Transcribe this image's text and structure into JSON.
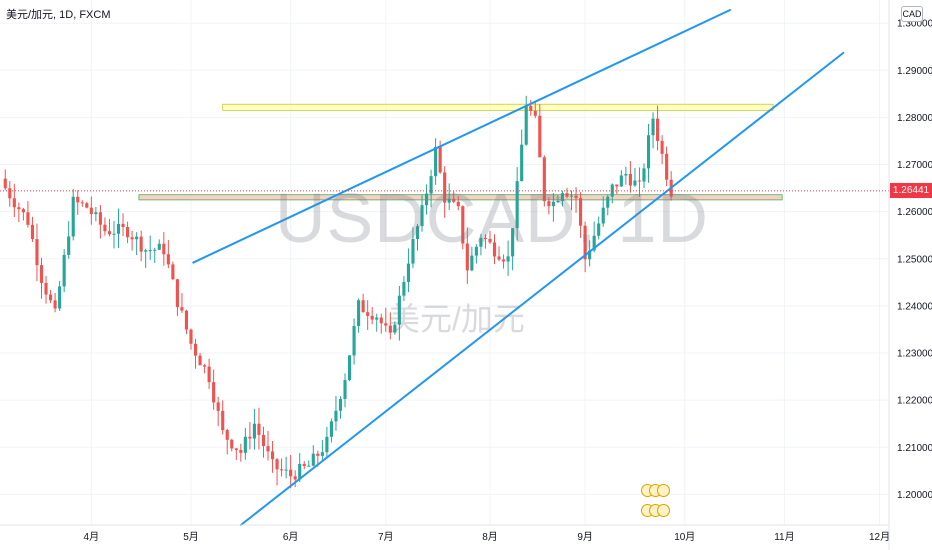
{
  "header": {
    "symbol_line": "美元/加元, 1D, FXCM",
    "currency": "CAD"
  },
  "watermark": {
    "ticker": "USDCAD, 1D",
    "description": "美元/加元"
  },
  "price_tag": "1.26441",
  "colors": {
    "up": "#26a69a",
    "down": "#ef5350",
    "trendline": "#2196f3",
    "resistance_zone": "#ffff99",
    "support_zone": "#f8b9b1",
    "price_tag": "#f23645"
  },
  "chart_data": {
    "type": "candlestick",
    "title": "",
    "xlabel": "",
    "ylabel": "",
    "ylim": [
      1.1935,
      1.3028
    ],
    "y_ticks": [
      "1.30000",
      "1.29000",
      "1.28000",
      "1.27000",
      "1.26000",
      "1.25000",
      "1.24000",
      "1.23000",
      "1.22000",
      "1.21000",
      "1.20000"
    ],
    "y_tick_values": [
      1.3,
      1.29,
      1.28,
      1.27,
      1.26,
      1.25,
      1.24,
      1.23,
      1.22,
      1.21,
      1.2
    ],
    "x_labels": [
      {
        "label": "4月",
        "bar": 19.5
      },
      {
        "label": "5月",
        "bar": 41.5
      },
      {
        "label": "6月",
        "bar": 63.5
      },
      {
        "label": "7月",
        "bar": 84.5
      },
      {
        "label": "8月",
        "bar": 107.5
      },
      {
        "label": "9月",
        "bar": 128.5
      },
      {
        "label": "10月",
        "bar": 150.5
      },
      {
        "label": "11月",
        "bar": 172.5
      },
      {
        "label": "12月",
        "bar": 193.5
      }
    ],
    "close_path": [
      [
        0,
        1.265
      ],
      [
        5,
        1.258
      ],
      [
        8,
        1.246
      ],
      [
        11,
        1.238
      ],
      [
        15,
        1.262
      ],
      [
        18,
        1.261
      ],
      [
        22,
        1.256
      ],
      [
        27,
        1.256
      ],
      [
        31,
        1.252
      ],
      [
        35,
        1.252
      ],
      [
        38,
        1.241
      ],
      [
        41,
        1.232
      ],
      [
        45,
        1.225
      ],
      [
        48,
        1.213
      ],
      [
        52,
        1.209
      ],
      [
        55,
        1.215
      ],
      [
        59,
        1.206
      ],
      [
        63,
        1.204
      ],
      [
        67,
        1.206
      ],
      [
        71,
        1.211
      ],
      [
        75,
        1.225
      ],
      [
        78,
        1.24
      ],
      [
        82,
        1.238
      ],
      [
        85,
        1.233
      ],
      [
        89,
        1.25
      ],
      [
        92,
        1.26
      ],
      [
        95,
        1.273
      ],
      [
        97,
        1.263
      ],
      [
        100,
        1.26
      ],
      [
        102,
        1.248
      ],
      [
        105,
        1.255
      ],
      [
        108,
        1.252
      ],
      [
        111,
        1.25
      ],
      [
        113,
        1.265
      ],
      [
        115,
        1.283
      ],
      [
        117,
        1.279
      ],
      [
        119,
        1.263
      ],
      [
        121,
        1.262
      ],
      [
        123,
        1.265
      ],
      [
        126,
        1.263
      ],
      [
        128,
        1.25
      ],
      [
        132,
        1.26
      ],
      [
        134,
        1.265
      ],
      [
        137,
        1.268
      ],
      [
        140,
        1.265
      ],
      [
        143,
        1.28
      ],
      [
        146,
        1.268
      ],
      [
        147,
        1.264
      ]
    ],
    "last_close": 1.26441,
    "zones": [
      {
        "kind": "resistance",
        "start_bar": 48.5,
        "end_bar": 170,
        "low": 1.2815,
        "high": 1.2828
      },
      {
        "kind": "support",
        "start_bar": 30,
        "end_bar": 172,
        "low": 1.2625,
        "high": 1.2636
      }
    ],
    "trendlines": [
      {
        "from": [
          42,
          1.2492
        ],
        "to": [
          160.5,
          1.3028
        ]
      },
      {
        "from": [
          52.5,
          1.1935
        ],
        "to": [
          185.5,
          1.2937
        ]
      }
    ],
    "grid": true,
    "legend": "none"
  }
}
